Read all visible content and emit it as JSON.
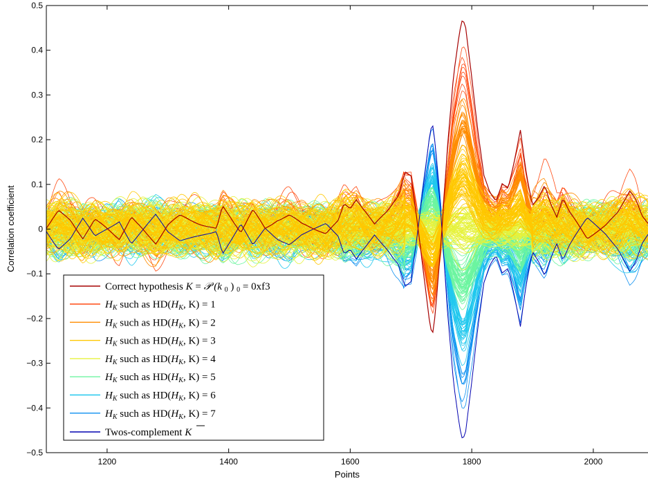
{
  "chart_data": {
    "type": "line",
    "xlabel": "Points",
    "ylabel": "Correlation coefficient",
    "xlim": [
      1100,
      2090
    ],
    "ylim": [
      -0.5,
      0.5
    ],
    "xticks": [
      1200,
      1400,
      1600,
      1800,
      2000
    ],
    "yticks": [
      -0.5,
      -0.4,
      -0.3,
      -0.2,
      -0.1,
      0,
      0.1,
      0.2,
      0.3,
      0.4,
      0.5
    ],
    "ytick_labels": [
      "−0.5",
      "−0.4",
      "−0.3",
      "−0.2",
      "−0.1",
      "0",
      "0.1",
      "0.2",
      "0.3",
      "0.4",
      "0.5"
    ],
    "grid": false,
    "legend_position": "bottom-left",
    "series": [
      {
        "name": "Correct hypothesis K = P(k0)0 = 0xf3",
        "color": "#a50000",
        "x": [
          1100,
          1120,
          1140,
          1160,
          1180,
          1200,
          1220,
          1240,
          1260,
          1280,
          1300,
          1320,
          1340,
          1360,
          1380,
          1390,
          1400,
          1420,
          1440,
          1460,
          1480,
          1500,
          1520,
          1540,
          1560,
          1580,
          1590,
          1600,
          1610,
          1620,
          1640,
          1660,
          1680,
          1690,
          1700,
          1710,
          1720,
          1730,
          1735,
          1740,
          1750,
          1760,
          1770,
          1780,
          1785,
          1790,
          1800,
          1810,
          1820,
          1830,
          1840,
          1850,
          1860,
          1870,
          1880,
          1890,
          1900,
          1910,
          1920,
          1930,
          1940,
          1950,
          1960,
          1970,
          1980,
          1990,
          2000,
          2020,
          2040,
          2060,
          2070,
          2080,
          2090
        ],
        "y": [
          0.0,
          0.04,
          0.02,
          -0.02,
          0.02,
          0.0,
          -0.02,
          0.03,
          0.0,
          -0.03,
          0.01,
          0.03,
          0.02,
          0.01,
          0.0,
          0.05,
          0.03,
          -0.01,
          0.04,
          0.0,
          0.02,
          0.03,
          0.01,
          0.0,
          -0.01,
          0.02,
          0.06,
          0.05,
          0.07,
          0.05,
          0.01,
          0.04,
          0.08,
          0.13,
          0.12,
          0.02,
          -0.09,
          -0.2,
          -0.24,
          -0.19,
          -0.02,
          0.18,
          0.34,
          0.44,
          0.47,
          0.45,
          0.34,
          0.22,
          0.12,
          0.08,
          0.06,
          0.1,
          0.09,
          0.15,
          0.22,
          0.12,
          0.05,
          0.07,
          0.1,
          0.06,
          0.03,
          0.07,
          0.04,
          0.02,
          0.0,
          -0.02,
          -0.01,
          0.01,
          0.04,
          0.09,
          0.07,
          0.03,
          0.01
        ]
      },
      {
        "name": "H_K such as HD(H_K, K) = 1",
        "color": "#ff4a12"
      },
      {
        "name": "H_K such as HD(H_K, K) = 2",
        "color": "#ff8c00"
      },
      {
        "name": "H_K such as HD(H_K, K) = 3",
        "color": "#ffc800"
      },
      {
        "name": "H_K such as HD(H_K, K) = 4",
        "color": "#e6f23c"
      },
      {
        "name": "H_K such as HD(H_K, K) = 5",
        "color": "#6cf5a0"
      },
      {
        "name": "H_K such as HD(H_K, K) = 6",
        "color": "#21c8ee"
      },
      {
        "name": "H_K such as HD(H_K, K) = 7",
        "color": "#0a8ef0"
      },
      {
        "name": "Twos-complement K̄",
        "color": "#0000b0"
      }
    ]
  },
  "legend": {
    "title_correct": "Correct hypothesis",
    "correct_formula_K": "K",
    "correct_formula_eq": " = ",
    "correct_formula_P": "𝒫",
    "correct_formula_arg": "(k",
    "correct_formula_sub0": "0",
    "correct_formula_close": ")",
    "correct_formula_value": " = 0xf3",
    "hk_label": "H",
    "hk_sub": "K",
    "such_as": " such as HD(",
    "hk_comma": ", K) = ",
    "hd_values": [
      "1",
      "2",
      "3",
      "4",
      "5",
      "6",
      "7"
    ],
    "twos_label": "Twos-complement ",
    "twos_K": "K"
  }
}
